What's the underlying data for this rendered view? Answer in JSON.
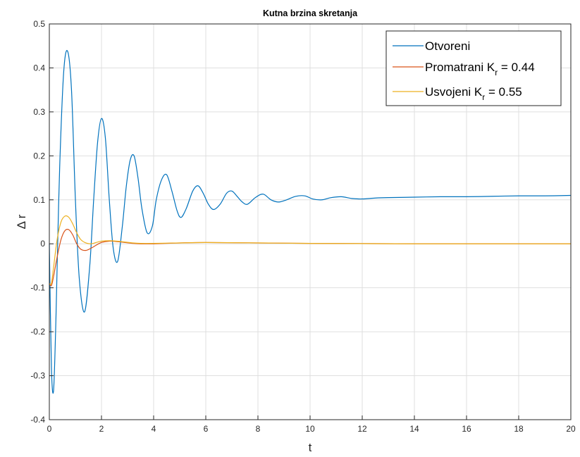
{
  "chart_data": {
    "type": "line",
    "title": "Kutna brzina skretanja",
    "xlabel": "t",
    "ylabel": "Δ r",
    "xlim": [
      0,
      20
    ],
    "ylim": [
      -0.4,
      0.5
    ],
    "xticks": [
      0,
      2,
      4,
      6,
      8,
      10,
      12,
      14,
      16,
      18,
      20
    ],
    "xtick_labels": [
      "0",
      "2",
      "4",
      "6",
      "8",
      "10",
      "12",
      "14",
      "16",
      "18",
      "20"
    ],
    "yticks": [
      -0.4,
      -0.3,
      -0.2,
      -0.1,
      0,
      0.1,
      0.2,
      0.3,
      0.4,
      0.5
    ],
    "ytick_labels": [
      "-0.4",
      "-0.3",
      "-0.2",
      "-0.1",
      "0",
      "0.1",
      "0.2",
      "0.3",
      "0.4",
      "0.5"
    ],
    "grid": true,
    "legend_position": "top-right",
    "series": [
      {
        "name": "Otvoreni",
        "color": "#0072bd",
        "x": [
          0,
          0.08,
          0.16,
          0.24,
          0.3,
          0.4,
          0.55,
          0.7,
          0.85,
          1.0,
          1.15,
          1.35,
          1.55,
          1.7,
          1.85,
          2.0,
          2.15,
          2.3,
          2.45,
          2.62,
          2.8,
          2.95,
          3.1,
          3.25,
          3.4,
          3.55,
          3.75,
          3.95,
          4.1,
          4.3,
          4.5,
          4.7,
          4.9,
          5.05,
          5.25,
          5.5,
          5.7,
          5.9,
          6.1,
          6.3,
          6.55,
          6.8,
          7.0,
          7.2,
          7.4,
          7.6,
          7.9,
          8.2,
          8.5,
          8.8,
          9.1,
          9.45,
          9.8,
          10.1,
          10.45,
          10.8,
          11.2,
          11.6,
          12.0,
          12.5,
          13.0,
          14.0,
          15.0,
          16.0,
          17.0,
          18.0,
          19.0,
          20.0
        ],
        "y": [
          0.0,
          -0.28,
          -0.335,
          -0.2,
          -0.05,
          0.18,
          0.39,
          0.438,
          0.35,
          0.1,
          -0.08,
          -0.155,
          -0.05,
          0.1,
          0.23,
          0.285,
          0.24,
          0.1,
          -0.01,
          -0.04,
          0.04,
          0.13,
          0.19,
          0.2,
          0.15,
          0.08,
          0.025,
          0.04,
          0.1,
          0.145,
          0.157,
          0.12,
          0.075,
          0.06,
          0.08,
          0.12,
          0.132,
          0.115,
          0.09,
          0.078,
          0.09,
          0.115,
          0.12,
          0.108,
          0.095,
          0.09,
          0.105,
          0.113,
          0.1,
          0.095,
          0.1,
          0.108,
          0.109,
          0.102,
          0.1,
          0.105,
          0.107,
          0.103,
          0.102,
          0.104,
          0.105,
          0.106,
          0.107,
          0.107,
          0.108,
          0.109,
          0.109,
          0.11
        ]
      },
      {
        "name": "Promatrani K_r = 0.44",
        "color": "#d95319",
        "x": [
          0,
          0.08,
          0.16,
          0.3,
          0.45,
          0.6,
          0.75,
          0.9,
          1.05,
          1.2,
          1.4,
          1.6,
          1.8,
          2.0,
          2.3,
          2.6,
          2.9,
          3.2,
          3.5,
          4.0,
          5.0,
          6.0,
          8.0,
          10.0,
          14.0,
          20.0
        ],
        "y": [
          -0.09,
          -0.095,
          -0.075,
          -0.03,
          0.01,
          0.03,
          0.032,
          0.02,
          0.0,
          -0.012,
          -0.015,
          -0.01,
          -0.003,
          0.003,
          0.006,
          0.005,
          0.003,
          0.001,
          0.0,
          0.0,
          0.002,
          0.003,
          0.002,
          0.001,
          0.0,
          0.0
        ]
      },
      {
        "name": "Usvojeni K_r = 0.55",
        "color": "#edb120",
        "x": [
          0,
          0.08,
          0.16,
          0.3,
          0.45,
          0.6,
          0.75,
          0.9,
          1.05,
          1.2,
          1.4,
          1.6,
          1.8,
          2.0,
          2.3,
          2.6,
          2.9,
          3.2,
          3.5,
          4.0,
          5.0,
          6.0,
          8.0,
          10.0,
          14.0,
          20.0
        ],
        "y": [
          -0.09,
          -0.09,
          -0.055,
          0.01,
          0.05,
          0.063,
          0.06,
          0.045,
          0.025,
          0.01,
          0.002,
          0.0,
          0.003,
          0.006,
          0.007,
          0.006,
          0.004,
          0.002,
          0.001,
          0.001,
          0.002,
          0.003,
          0.002,
          0.001,
          0.0,
          0.0
        ]
      }
    ],
    "legend_entries": [
      {
        "main": "Otvoreni",
        "sub": "",
        "tail": ""
      },
      {
        "main": "Promatrani K",
        "sub": "r",
        "tail": " = 0.44"
      },
      {
        "main": "Usvojeni K",
        "sub": "r",
        "tail": " = 0.55"
      }
    ]
  }
}
